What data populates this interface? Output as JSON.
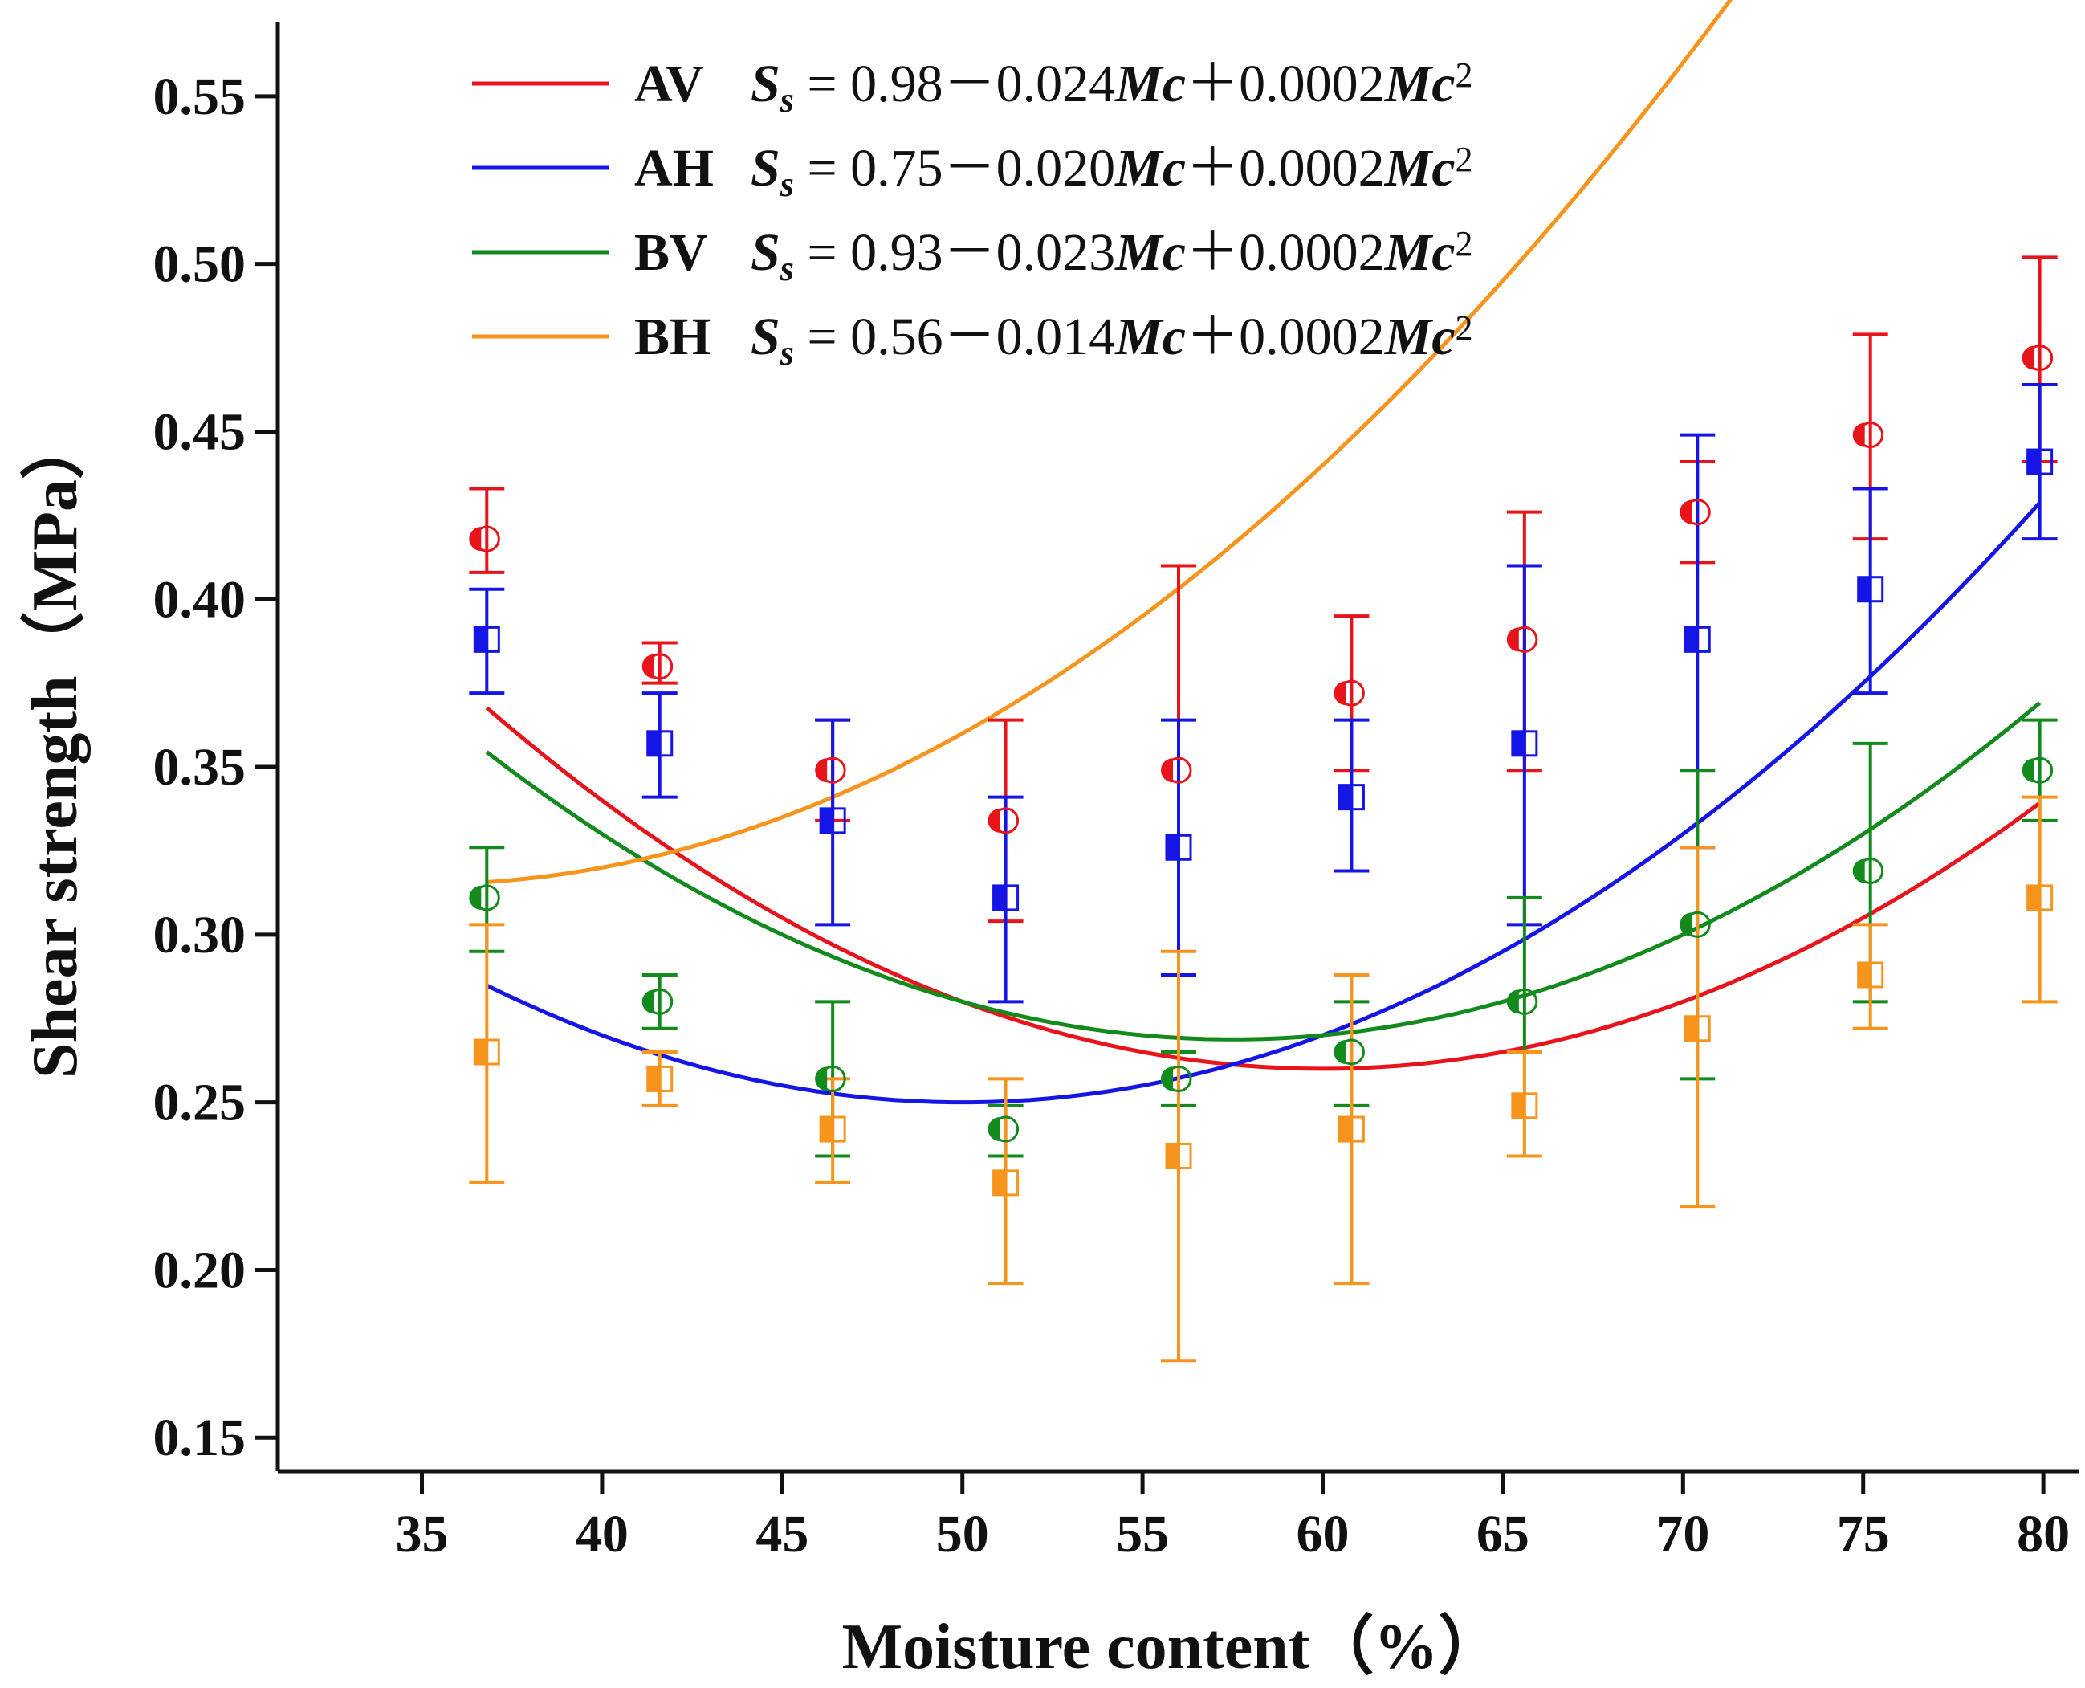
{
  "chart_data": {
    "type": "scatter",
    "title": "",
    "xlabel": "Moisture content（%）",
    "ylabel": "Shear strength（MPa）",
    "xlim": [
      31,
      81
    ],
    "ylim": [
      0.14,
      0.572
    ],
    "x_ticks": [
      35,
      40,
      45,
      50,
      55,
      60,
      65,
      70,
      75,
      80
    ],
    "x_tick_labels": [
      "35",
      "40",
      "45",
      "50",
      "55",
      "60",
      "65",
      "70",
      "75",
      "80"
    ],
    "y_ticks": [
      0.15,
      0.2,
      0.25,
      0.3,
      0.35,
      0.4,
      0.45,
      0.5,
      0.55
    ],
    "y_tick_labels": [
      "0.15",
      "0.20",
      "0.25",
      "0.30",
      "0.35",
      "0.40",
      "0.45",
      "0.50",
      "0.55"
    ],
    "grid": false,
    "legend_position": "top-left",
    "series": [
      {
        "name": "AV",
        "color": "#e8141c",
        "marker": "circle",
        "equation": {
          "intercept": "0.98",
          "linear": "0.024",
          "quadratic": "0.0002"
        },
        "fit": {
          "a": 0.98,
          "b": 0.024,
          "c": 0.0002
        },
        "x": [
          36.8,
          41.6,
          46.4,
          51.2,
          56.0,
          60.8,
          65.6,
          70.4,
          75.2,
          79.9
        ],
        "y": [
          0.418,
          0.38,
          0.349,
          0.334,
          0.349,
          0.372,
          0.388,
          0.426,
          0.449,
          0.472
        ],
        "err_low": [
          0.408,
          0.375,
          0.334,
          0.304,
          0.288,
          0.349,
          0.349,
          0.411,
          0.418,
          0.441
        ],
        "err_high": [
          0.433,
          0.387,
          0.364,
          0.364,
          0.41,
          0.395,
          0.426,
          0.441,
          0.479,
          0.502
        ]
      },
      {
        "name": "AH",
        "color": "#1515e6",
        "marker": "square",
        "equation": {
          "intercept": "0.75",
          "linear": "0.020",
          "quadratic": "0.0002"
        },
        "fit": {
          "a": 0.75,
          "b": 0.02,
          "c": 0.0002
        },
        "x": [
          36.8,
          41.6,
          46.4,
          51.2,
          56.0,
          60.8,
          65.6,
          70.4,
          75.2,
          79.9
        ],
        "y": [
          0.388,
          0.357,
          0.334,
          0.311,
          0.326,
          0.341,
          0.357,
          0.388,
          0.403,
          0.441
        ],
        "err_low": [
          0.372,
          0.341,
          0.303,
          0.28,
          0.288,
          0.319,
          0.303,
          0.326,
          0.372,
          0.418
        ],
        "err_high": [
          0.403,
          0.372,
          0.364,
          0.341,
          0.364,
          0.364,
          0.41,
          0.449,
          0.433,
          0.464
        ]
      },
      {
        "name": "BV",
        "color": "#138a1c",
        "marker": "circle",
        "equation": {
          "intercept": "0.93",
          "linear": "0.023",
          "quadratic": "0.0002"
        },
        "fit": {
          "a": 0.93,
          "b": 0.023,
          "c": 0.0002
        },
        "x": [
          36.8,
          41.6,
          46.4,
          51.2,
          56.0,
          60.8,
          65.6,
          70.4,
          75.2,
          79.9
        ],
        "y": [
          0.311,
          0.28,
          0.257,
          0.242,
          0.257,
          0.265,
          0.28,
          0.303,
          0.319,
          0.349
        ],
        "err_low": [
          0.295,
          0.272,
          0.234,
          0.234,
          0.249,
          0.249,
          0.265,
          0.257,
          0.28,
          0.334
        ],
        "err_high": [
          0.326,
          0.288,
          0.28,
          0.249,
          0.265,
          0.28,
          0.311,
          0.349,
          0.357,
          0.364
        ]
      },
      {
        "name": "BH",
        "color": "#f7941d",
        "marker": "square",
        "equation": {
          "intercept": "0.56",
          "linear": "0.014",
          "quadratic": "0.0002"
        },
        "fit": {
          "a": 0.56,
          "b": 0.014,
          "c": 0.0002
        },
        "x": [
          36.8,
          41.6,
          46.4,
          51.2,
          56.0,
          60.8,
          65.6,
          70.4,
          75.2,
          79.9
        ],
        "y": [
          0.265,
          0.257,
          0.242,
          0.226,
          0.234,
          0.242,
          0.249,
          0.272,
          0.288,
          0.311
        ],
        "err_low": [
          0.226,
          0.249,
          0.226,
          0.196,
          0.173,
          0.196,
          0.234,
          0.219,
          0.272,
          0.28
        ],
        "err_high": [
          0.303,
          0.265,
          0.257,
          0.257,
          0.295,
          0.288,
          0.265,
          0.326,
          0.303,
          0.341
        ]
      }
    ]
  },
  "legend": {
    "symbol": "S",
    "subscript": "s",
    "equals": "=",
    "minus": "－",
    "plus": "＋",
    "var": "Mc",
    "power": "2"
  }
}
